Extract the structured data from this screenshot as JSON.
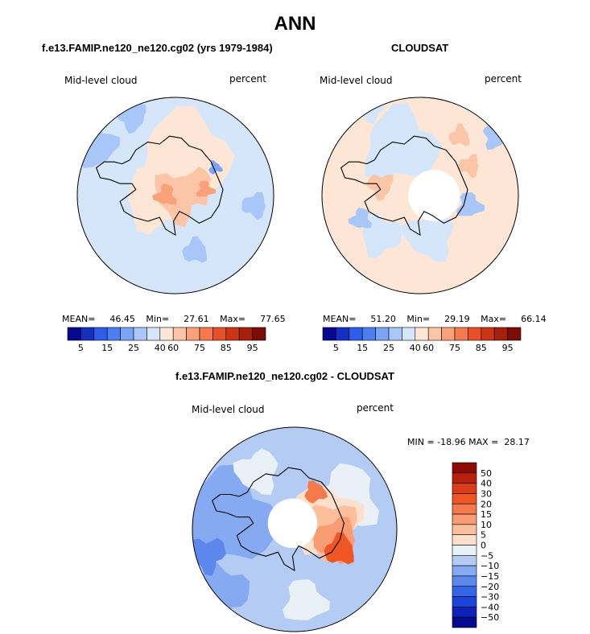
{
  "page_title": "ANN",
  "chart_data": [
    {
      "type": "contour-map",
      "projection": "south-polar-stereographic",
      "title": "f.e13.FAMIP.ne120_ne120.cg02 (yrs 1979-1984)",
      "variable_label": "Mid-level cloud",
      "units_label": "percent",
      "stats": {
        "mean_label": "MEAN=",
        "mean": "46.45",
        "min_label": "Min=",
        "min": "27.61",
        "max_label": "Max=",
        "max": "77.65"
      },
      "colorbar": {
        "orientation": "horizontal",
        "tick_labels": [
          "5",
          "15",
          "25",
          "40",
          "60",
          "75",
          "85",
          "95"
        ],
        "colors": [
          "#08088f",
          "#1530c0",
          "#2f5ce8",
          "#4a7ef2",
          "#7aa4f5",
          "#a8c6f7",
          "#d5e6fb",
          "#fde6d6",
          "#fcc5a8",
          "#f9a27a",
          "#f47a4e",
          "#e8502a",
          "#cc3416",
          "#a8200c",
          "#7c0c06"
        ]
      }
    },
    {
      "type": "contour-map",
      "projection": "south-polar-stereographic",
      "title": "CLOUDSAT",
      "variable_label": "Mid-level cloud",
      "units_label": "percent",
      "stats": {
        "mean_label": "MEAN=",
        "mean": "51.20",
        "min_label": "Min=",
        "min": "29.19",
        "max_label": "Max=",
        "max": "66.14"
      },
      "colorbar": {
        "orientation": "horizontal",
        "tick_labels": [
          "5",
          "15",
          "25",
          "40",
          "60",
          "75",
          "85",
          "95"
        ],
        "colors": [
          "#08088f",
          "#1530c0",
          "#2f5ce8",
          "#4a7ef2",
          "#7aa4f5",
          "#a8c6f7",
          "#d5e6fb",
          "#fde6d6",
          "#fcc5a8",
          "#f9a27a",
          "#f47a4e",
          "#e8502a",
          "#cc3416",
          "#a8200c",
          "#7c0c06"
        ]
      }
    },
    {
      "type": "contour-map",
      "projection": "south-polar-stereographic",
      "title": "f.e13.FAMIP.ne120_ne120.cg02 - CLOUDSAT",
      "variable_label": "Mid-level cloud",
      "units_label": "percent",
      "minmax_text": "MIN = -18.96 MAX =  28.17",
      "colorbar": {
        "orientation": "vertical",
        "tick_labels": [
          "50",
          "40",
          "30",
          "20",
          "15",
          "10",
          "5",
          "0",
          "−5",
          "−10",
          "−15",
          "−20",
          "−30",
          "−40",
          "−50"
        ],
        "colors": [
          "#8c0a06",
          "#b8200e",
          "#dd3a18",
          "#ef5626",
          "#f47a4c",
          "#f89c74",
          "#fbbf9e",
          "#fde0cc",
          "#e9f0f8",
          "#b4ccf4",
          "#86aaf2",
          "#5c88ee",
          "#3465e6",
          "#1c44d8",
          "#0c22b8",
          "#060a8c"
        ]
      }
    }
  ]
}
